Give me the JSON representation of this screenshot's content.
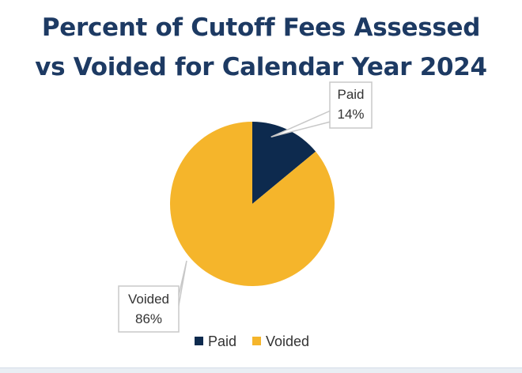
{
  "chart_data": {
    "type": "pie",
    "title": [
      "Percent of Cutoff Fees Assessed",
      "vs Voided for Calendar Year 2024"
    ],
    "slices": [
      {
        "name": "Paid",
        "value": 14,
        "label": "14%",
        "color": "#0d2a4e"
      },
      {
        "name": "Voided",
        "value": 86,
        "label": "86%",
        "color": "#f5b52b"
      }
    ],
    "legend": {
      "position": "bottom",
      "entries": [
        "Paid",
        "Voided"
      ]
    }
  }
}
